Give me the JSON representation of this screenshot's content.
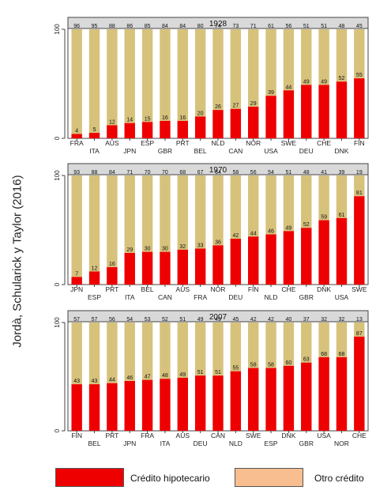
{
  "side_caption": "Jordà, Schularick y Taylor (2016)",
  "colors": {
    "mortgage": "#ee0000",
    "other": "#d7c27c",
    "legend_other": "#f9be8f",
    "panel_header": "#d9d9d9"
  },
  "legend": {
    "mortgage_label": "Crédito hipotecario",
    "other_label": "Otro crédito"
  },
  "chart_data": [
    {
      "type": "bar",
      "stacked": true,
      "title": "1928",
      "ylim": [
        0,
        100
      ],
      "yticks": [
        "0",
        "100"
      ],
      "categories": [
        "FRA",
        "ITA",
        "AUS",
        "JPN",
        "ESP",
        "GBR",
        "PRT",
        "BEL",
        "NLD",
        "CAN",
        "NOR",
        "USA",
        "SWE",
        "DEU",
        "CHE",
        "DNK",
        "FIN"
      ],
      "series": [
        {
          "key": "mortgage",
          "values": [
            4,
            5,
            12,
            14,
            15,
            16,
            16,
            20,
            26,
            27,
            29,
            39,
            44,
            49,
            49,
            52,
            55
          ]
        },
        {
          "key": "other",
          "values": [
            96,
            95,
            88,
            86,
            85,
            84,
            84,
            80,
            74,
            73,
            71,
            61,
            56,
            51,
            51,
            48,
            45
          ]
        }
      ]
    },
    {
      "type": "bar",
      "stacked": true,
      "title": "1970",
      "ylim": [
        0,
        100
      ],
      "yticks": [
        "0",
        "100"
      ],
      "categories": [
        "JPN",
        "ESP",
        "PRT",
        "ITA",
        "BEL",
        "CAN",
        "AUS",
        "FRA",
        "NOR",
        "DEU",
        "FIN",
        "NLD",
        "CHE",
        "GBR",
        "DNK",
        "USA",
        "SWE"
      ],
      "series": [
        {
          "key": "mortgage",
          "values": [
            7,
            12,
            16,
            29,
            30,
            30,
            32,
            33,
            36,
            42,
            44,
            46,
            49,
            52,
            59,
            61,
            81
          ]
        },
        {
          "key": "other",
          "values": [
            93,
            88,
            84,
            71,
            70,
            70,
            68,
            67,
            64,
            58,
            56,
            54,
            51,
            48,
            41,
            39,
            19
          ]
        }
      ]
    },
    {
      "type": "bar",
      "stacked": true,
      "title": "2007",
      "ylim": [
        0,
        100
      ],
      "yticks": [
        "0",
        "100"
      ],
      "categories": [
        "FIN",
        "BEL",
        "PRT",
        "JPN",
        "FRA",
        "ITA",
        "AUS",
        "DEU",
        "CAN",
        "NLD",
        "SWE",
        "ESP",
        "DNK",
        "GBR",
        "USA",
        "NOR",
        "CHE"
      ],
      "series": [
        {
          "key": "mortgage",
          "values": [
            43,
            43,
            44,
            46,
            47,
            48,
            49,
            51,
            51,
            55,
            58,
            58,
            60,
            63,
            68,
            68,
            87
          ]
        },
        {
          "key": "other",
          "values": [
            57,
            57,
            56,
            54,
            53,
            52,
            51,
            49,
            49,
            45,
            42,
            42,
            40,
            37,
            32,
            32,
            13
          ]
        }
      ]
    }
  ]
}
